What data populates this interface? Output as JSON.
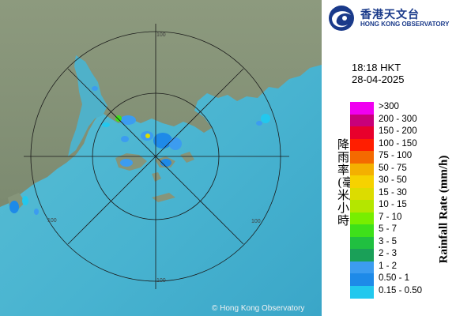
{
  "header": {
    "logo_icon": "hko-swirl-logo",
    "logo_chinese": "香港天文台",
    "logo_english": "HONG KONG OBSERVATORY"
  },
  "timestamp": {
    "time": "18:18 HKT",
    "date": "28-04-2025"
  },
  "legend": {
    "title_chinese": "降雨率(毫米/小時)",
    "title_english": "Rainfall Rate (mm/h)",
    "items": [
      {
        "label": ">300",
        "color": "#f000f0"
      },
      {
        "label": "200 - 300",
        "color": "#c8007a"
      },
      {
        "label": "150 - 200",
        "color": "#e8002c"
      },
      {
        "label": "100 - 150",
        "color": "#ff1e00"
      },
      {
        "label": "75 - 100",
        "color": "#f46a00"
      },
      {
        "label": "50 - 75",
        "color": "#f4b000"
      },
      {
        "label": "30 - 50",
        "color": "#f6d200"
      },
      {
        "label": "15 - 30",
        "color": "#dcdc00"
      },
      {
        "label": "10 - 15",
        "color": "#b4e600"
      },
      {
        "label": "7 - 10",
        "color": "#78ee00"
      },
      {
        "label": "5 - 7",
        "color": "#3ee01a"
      },
      {
        "label": "3 - 5",
        "color": "#20c040"
      },
      {
        "label": "2 - 3",
        "color": "#1aa058"
      },
      {
        "label": "1 - 2",
        "color": "#3c9cf0"
      },
      {
        "label": "0.50 - 1",
        "color": "#1e8ae8"
      },
      {
        "label": "0.15 - 0.50",
        "color": "#22c8ee"
      }
    ]
  },
  "map": {
    "range_labels": [
      "100",
      "100",
      "100",
      "100"
    ],
    "copyright": "© Hong Kong Observatory"
  }
}
